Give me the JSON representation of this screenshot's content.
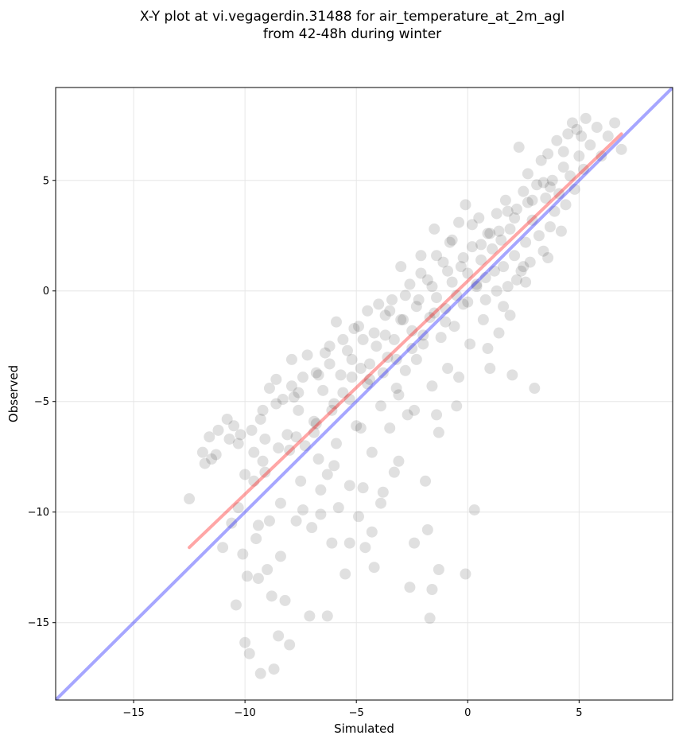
{
  "chart_data": {
    "type": "scatter",
    "title_line1": "X-Y plot at vi.vegagerdin.31488 for air_temperature_at_2m_agl",
    "title_line2": "from 42-48h during winter",
    "xlabel": "Simulated",
    "ylabel": "Observed",
    "xlim": [
      -18.5,
      9.2
    ],
    "ylim": [
      -18.5,
      9.2
    ],
    "xticks": [
      -15,
      -10,
      -5,
      0,
      5
    ],
    "yticks": [
      -15,
      -10,
      -5,
      0,
      5
    ],
    "xtick_labels": [
      "−15",
      "−10",
      "−5",
      "0",
      "5"
    ],
    "ytick_labels": [
      "−15",
      "−10",
      "−5",
      "0",
      "5"
    ],
    "grid": true,
    "legend": "none",
    "identity_line": {
      "from": [
        -18.5,
        -18.5
      ],
      "to": [
        9.2,
        9.2
      ],
      "color": "#0000ff"
    },
    "fit_line": {
      "from": [
        -12.5,
        -11.6
      ],
      "to": [
        6.9,
        7.1
      ],
      "color": "#ff0000"
    },
    "point_color": "#000000",
    "points": [
      [
        -12.5,
        -9.4
      ],
      [
        -11.9,
        -7.3
      ],
      [
        -11.8,
        -7.8
      ],
      [
        -11.6,
        -6.6
      ],
      [
        -11.5,
        -7.6
      ],
      [
        -11.3,
        -7.4
      ],
      [
        -11.2,
        -6.3
      ],
      [
        -11.0,
        -11.6
      ],
      [
        -10.8,
        -5.8
      ],
      [
        -10.7,
        -6.7
      ],
      [
        -10.6,
        -10.5
      ],
      [
        -10.5,
        -6.1
      ],
      [
        -10.4,
        -14.2
      ],
      [
        -10.3,
        -6.9
      ],
      [
        -10.2,
        -6.5
      ],
      [
        -10.1,
        -11.9
      ],
      [
        -10.0,
        -15.9
      ],
      [
        -9.9,
        -12.9
      ],
      [
        -9.8,
        -16.4
      ],
      [
        -9.7,
        -6.3
      ],
      [
        -9.6,
        -7.3
      ],
      [
        -9.5,
        -11.2
      ],
      [
        -9.4,
        -13.0
      ],
      [
        -9.3,
        -17.3
      ],
      [
        -9.2,
        -5.4
      ],
      [
        -9.1,
        -6.7
      ],
      [
        -9.0,
        -12.6
      ],
      [
        -8.9,
        -10.4
      ],
      [
        -8.8,
        -13.8
      ],
      [
        -8.7,
        -17.1
      ],
      [
        -8.6,
        -4.0
      ],
      [
        -8.5,
        -15.6
      ],
      [
        -8.4,
        -12.0
      ],
      [
        -8.3,
        -4.9
      ],
      [
        -8.2,
        -14.0
      ],
      [
        -8.1,
        -6.5
      ],
      [
        -8.0,
        -16.0
      ],
      [
        -7.9,
        -4.3
      ],
      [
        -7.8,
        -4.8
      ],
      [
        -7.7,
        -10.4
      ],
      [
        -7.6,
        -5.4
      ],
      [
        -7.5,
        -8.6
      ],
      [
        -7.4,
        -3.9
      ],
      [
        -7.3,
        -7.0
      ],
      [
        -7.2,
        -2.9
      ],
      [
        -7.1,
        -14.7
      ],
      [
        -7.0,
        -10.7
      ],
      [
        -6.9,
        -5.9
      ],
      [
        -6.8,
        -3.7
      ],
      [
        -6.7,
        -7.6
      ],
      [
        -6.6,
        -10.1
      ],
      [
        -6.5,
        -4.5
      ],
      [
        -6.4,
        -2.8
      ],
      [
        -6.3,
        -8.3
      ],
      [
        -6.2,
        -3.3
      ],
      [
        -6.1,
        -11.4
      ],
      [
        -6.0,
        -5.1
      ],
      [
        -5.9,
        -1.4
      ],
      [
        -5.8,
        -9.8
      ],
      [
        -5.7,
        -3.8
      ],
      [
        -5.6,
        -4.6
      ],
      [
        -5.5,
        -12.8
      ],
      [
        -5.4,
        -2.7
      ],
      [
        -5.3,
        -8.8
      ],
      [
        -5.2,
        -3.1
      ],
      [
        -5.1,
        -1.7
      ],
      [
        -5.0,
        -6.1
      ],
      [
        -4.9,
        -10.2
      ],
      [
        -4.8,
        -3.5
      ],
      [
        -4.7,
        -2.2
      ],
      [
        -4.6,
        -11.6
      ],
      [
        -4.5,
        -0.9
      ],
      [
        -4.4,
        -4.0
      ],
      [
        -4.3,
        -7.3
      ],
      [
        -4.2,
        -12.5
      ],
      [
        -4.1,
        -2.5
      ],
      [
        -4.0,
        -0.6
      ],
      [
        -3.9,
        -5.2
      ],
      [
        -3.8,
        -9.1
      ],
      [
        -3.7,
        -1.1
      ],
      [
        -3.6,
        -3.0
      ],
      [
        -3.5,
        -6.2
      ],
      [
        -3.4,
        -0.4
      ],
      [
        -3.3,
        -2.2
      ],
      [
        -3.2,
        -4.4
      ],
      [
        -3.1,
        -7.7
      ],
      [
        -3.0,
        1.1
      ],
      [
        -2.9,
        -1.3
      ],
      [
        -2.8,
        -3.6
      ],
      [
        -2.7,
        -5.6
      ],
      [
        -2.6,
        0.3
      ],
      [
        -2.5,
        -1.8
      ],
      [
        -2.4,
        -11.4
      ],
      [
        -2.3,
        -3.1
      ],
      [
        -2.2,
        -0.4
      ],
      [
        -2.1,
        1.6
      ],
      [
        -2.0,
        -2.4
      ],
      [
        -1.9,
        -8.6
      ],
      [
        -1.8,
        0.5
      ],
      [
        -1.7,
        -1.2
      ],
      [
        -1.6,
        -4.3
      ],
      [
        -1.5,
        2.8
      ],
      [
        -1.4,
        -0.3
      ],
      [
        -1.3,
        -6.4
      ],
      [
        -1.2,
        -2.1
      ],
      [
        -1.1,
        1.3
      ],
      [
        -1.0,
        -0.8
      ],
      [
        -0.9,
        -3.5
      ],
      [
        -0.8,
        2.2
      ],
      [
        -0.7,
        0.4
      ],
      [
        -0.6,
        -1.6
      ],
      [
        -0.5,
        -5.2
      ],
      [
        -0.4,
        3.1
      ],
      [
        -0.3,
        1.1
      ],
      [
        -0.2,
        -0.6
      ],
      [
        -0.1,
        3.9
      ],
      [
        0.0,
        0.8
      ],
      [
        0.1,
        -2.4
      ],
      [
        0.2,
        2.0
      ],
      [
        0.3,
        -9.9
      ],
      [
        0.4,
        0.2
      ],
      [
        0.5,
        3.3
      ],
      [
        0.6,
        1.4
      ],
      [
        0.7,
        -1.3
      ],
      [
        0.8,
        0.6
      ],
      [
        0.9,
        2.6
      ],
      [
        1.0,
        -3.5
      ],
      [
        1.1,
        1.9
      ],
      [
        1.2,
        0.9
      ],
      [
        1.3,
        3.5
      ],
      [
        1.4,
        -1.9
      ],
      [
        1.5,
        2.3
      ],
      [
        1.6,
        1.1
      ],
      [
        1.7,
        4.1
      ],
      [
        1.8,
        0.2
      ],
      [
        1.9,
        2.8
      ],
      [
        2.0,
        -3.8
      ],
      [
        2.1,
        1.6
      ],
      [
        2.2,
        3.7
      ],
      [
        2.3,
        6.5
      ],
      [
        2.4,
        0.9
      ],
      [
        2.5,
        4.5
      ],
      [
        2.6,
        2.2
      ],
      [
        2.7,
        5.3
      ],
      [
        2.8,
        1.3
      ],
      [
        2.9,
        3.2
      ],
      [
        3.0,
        -4.4
      ],
      [
        3.1,
        4.8
      ],
      [
        3.2,
        2.5
      ],
      [
        3.3,
        5.9
      ],
      [
        3.4,
        1.8
      ],
      [
        3.5,
        4.2
      ],
      [
        3.6,
        6.2
      ],
      [
        3.7,
        2.9
      ],
      [
        3.8,
        5.0
      ],
      [
        3.9,
        3.6
      ],
      [
        4.0,
        6.8
      ],
      [
        4.1,
        4.4
      ],
      [
        4.2,
        2.7
      ],
      [
        4.3,
        5.6
      ],
      [
        4.4,
        3.9
      ],
      [
        4.5,
        7.1
      ],
      [
        4.6,
        5.2
      ],
      [
        4.7,
        7.6
      ],
      [
        4.8,
        4.6
      ],
      [
        4.9,
        7.3
      ],
      [
        5.0,
        6.1
      ],
      [
        5.1,
        7.0
      ],
      [
        5.2,
        5.5
      ],
      [
        5.3,
        7.8
      ],
      [
        5.5,
        6.6
      ],
      [
        5.8,
        7.4
      ],
      [
        6.0,
        6.1
      ],
      [
        6.3,
        7.0
      ],
      [
        6.6,
        7.6
      ],
      [
        6.9,
        6.4
      ],
      [
        -1.8,
        -10.8
      ],
      [
        -2.6,
        -13.4
      ],
      [
        -1.6,
        -13.5
      ],
      [
        -1.3,
        -12.6
      ],
      [
        -1.7,
        -14.8
      ],
      [
        -0.1,
        -12.8
      ],
      [
        -6.3,
        -14.7
      ],
      [
        -5.3,
        -11.4
      ],
      [
        -4.3,
        -10.9
      ],
      [
        -3.9,
        -9.6
      ],
      [
        -4.7,
        -8.9
      ],
      [
        -3.3,
        -8.2
      ],
      [
        -5.9,
        -6.9
      ],
      [
        -4.8,
        -6.2
      ],
      [
        -6.6,
        -9.0
      ],
      [
        -7.4,
        -9.9
      ],
      [
        -8.4,
        -9.6
      ],
      [
        -9.4,
        -10.6
      ],
      [
        -9.1,
        -8.2
      ],
      [
        -8.0,
        -7.2
      ],
      [
        -9.6,
        -8.6
      ],
      [
        -10.3,
        -9.8
      ],
      [
        -6.9,
        -6.4
      ],
      [
        -6.0,
        -7.9
      ],
      [
        -3.1,
        -4.7
      ],
      [
        -2.4,
        -5.4
      ],
      [
        -1.4,
        -5.6
      ],
      [
        -0.4,
        -3.9
      ],
      [
        0.9,
        -2.6
      ],
      [
        1.9,
        -1.1
      ],
      [
        2.6,
        0.4
      ],
      [
        3.6,
        1.5
      ],
      [
        -5.6,
        -2.2
      ],
      [
        -4.9,
        -1.6
      ],
      [
        -4.2,
        -1.9
      ],
      [
        -3.5,
        -0.9
      ],
      [
        -2.8,
        -0.2
      ],
      [
        -2.1,
        0.8
      ],
      [
        -1.4,
        1.6
      ],
      [
        -0.7,
        2.3
      ],
      [
        0.2,
        3.0
      ],
      [
        1.0,
        2.6
      ],
      [
        1.8,
        3.6
      ],
      [
        2.7,
        4.0
      ],
      [
        3.4,
        4.9
      ],
      [
        4.3,
        6.3
      ],
      [
        -6.7,
        -3.8
      ],
      [
        -7.6,
        -4.6
      ],
      [
        -8.6,
        -5.1
      ],
      [
        -9.3,
        -5.8
      ],
      [
        -8.9,
        -4.4
      ],
      [
        -7.9,
        -3.1
      ],
      [
        -6.2,
        -2.5
      ],
      [
        -5.2,
        -3.9
      ],
      [
        -4.4,
        -3.3
      ],
      [
        -3.7,
        -2.0
      ],
      [
        -3.0,
        -1.3
      ],
      [
        -2.3,
        -0.7
      ],
      [
        -1.6,
        0.2
      ],
      [
        -0.9,
        0.9
      ],
      [
        -0.2,
        1.5
      ],
      [
        0.6,
        2.1
      ],
      [
        1.4,
        2.7
      ],
      [
        2.1,
        3.3
      ],
      [
        2.9,
        4.1
      ],
      [
        3.7,
        4.7
      ],
      [
        0.4,
        0.3
      ],
      [
        0.8,
        -0.4
      ],
      [
        1.3,
        0.0
      ],
      [
        1.6,
        -0.7
      ],
      [
        2.2,
        0.5
      ],
      [
        2.5,
        1.1
      ],
      [
        0.0,
        -0.5
      ],
      [
        -0.5,
        -0.2
      ],
      [
        -1.0,
        -1.4
      ],
      [
        -1.5,
        -1.0
      ],
      [
        -2.0,
        -2.0
      ],
      [
        -2.5,
        -2.6
      ],
      [
        -3.2,
        -3.1
      ],
      [
        -3.8,
        -3.7
      ],
      [
        -4.5,
        -4.2
      ],
      [
        -5.3,
        -4.9
      ],
      [
        -6.1,
        -5.4
      ],
      [
        -6.8,
        -6.0
      ],
      [
        -7.7,
        -6.6
      ],
      [
        -8.5,
        -7.1
      ],
      [
        -9.2,
        -7.7
      ],
      [
        -10.0,
        -8.3
      ]
    ]
  }
}
